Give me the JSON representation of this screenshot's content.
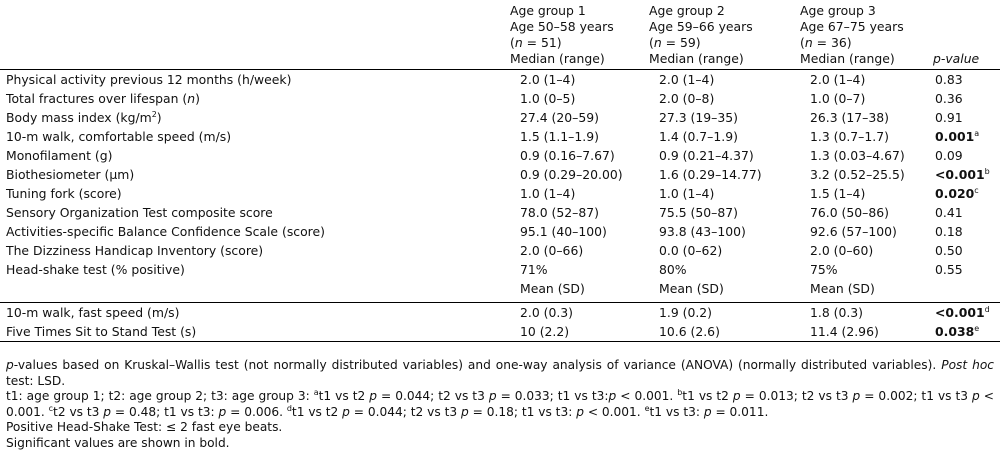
{
  "header": {
    "groups": [
      {
        "name": "Age group 1",
        "age": "Age 50–58 years",
        "n": "(n = 51)",
        "stat": "Median (range)"
      },
      {
        "name": "Age group 2",
        "age": "Age 59–66 years",
        "n": "(n = 59)",
        "stat": "Median (range)"
      },
      {
        "name": "Age group 3",
        "age": "Age 67–75 years",
        "n": "(n = 36)",
        "stat": "Median (range)"
      }
    ],
    "pvalue": "p-value"
  },
  "rows": [
    {
      "label": "Physical activity previous 12 months (h/week)",
      "g1": "2.0 (1–4)",
      "g2": "2.0 (1–4)",
      "g3": "2.0 (1–4)",
      "p": "0.83"
    },
    {
      "label": "Total fractures over lifespan (n)",
      "g1": "1.0 (0–5)",
      "g2": "2.0 (0–8)",
      "g3": "1.0 (0–7)",
      "p": "0.36"
    },
    {
      "label": "Body mass index (kg/m2)",
      "g1": "27.4 (20–59)",
      "g2": "27.3 (19–35)",
      "g3": "26.3 (17–38)",
      "p": "0.91"
    },
    {
      "label": "10-m walk, comfortable speed (m/s)",
      "g1": "1.5 (1.1–1.9)",
      "g2": "1.4 (0.7–1.9)",
      "g3": "1.3 (0.7–1.7)",
      "p": "0.001",
      "sup": "a"
    },
    {
      "label": "Monofilament (g)",
      "g1": "0.9 (0.16–7.67)",
      "g2": "0.9 (0.21–4.37)",
      "g3": "1.3 (0.03–4.67)",
      "p": "0.09"
    },
    {
      "label": "Biothesiometer (µm)",
      "g1": "0.9 (0.29–20.00)",
      "g2": "1.6 (0.29–14.77)",
      "g3": "3.2 (0.52–25.5)",
      "p": "<0.001",
      "sup": "b"
    },
    {
      "label": "Tuning fork (score)",
      "g1": "1.0 (1–4)",
      "g2": "1.0 (1–4)",
      "g3": "1.5 (1–4)",
      "p": "0.020",
      "sup": "c"
    },
    {
      "label": "Sensory Organization Test composite score",
      "g1": "78.0 (52–87)",
      "g2": "75.5 (50–87)",
      "g3": "76.0 (50–86)",
      "p": "0.41"
    },
    {
      "label": "Activities-specific Balance Confidence Scale (score)",
      "g1": "95.1 (40–100)",
      "g2": "93.8 (43–100)",
      "g3": "92.6 (57–100)",
      "p": "0.18"
    },
    {
      "label": "The Dizziness Handicap Inventory (score)",
      "g1": "2.0 (0–66)",
      "g2": "0.0 (0–62)",
      "g3": "2.0 (0–60)",
      "p": "0.50"
    },
    {
      "label": "Head-shake test (% positive)",
      "g1": "71%",
      "g2": "80%",
      "g3": "75%",
      "p": "0.55"
    }
  ],
  "mean_header": {
    "g1": "Mean (SD)",
    "g2": "Mean (SD)",
    "g3": "Mean (SD)"
  },
  "mean_rows": [
    {
      "label": "10-m walk, fast speed (m/s)",
      "g1": "2.0 (0.3)",
      "g2": "1.9 (0.2)",
      "g3": "1.8 (0.3)",
      "p": "<0.001",
      "sup": "d"
    },
    {
      "label": "Five Times Sit to Stand Test (s)",
      "g1": "10 (2.2)",
      "g2": "10.6 (2.6)",
      "g3": "11.4 (2.96)",
      "p": "0.038",
      "sup": "e"
    }
  ],
  "notes": {
    "n1a": "p",
    "n1b": "-values based on Kruskal–Wallis test (not normally distributed variables) and one-way analysis of variance (ANOVA) (normally distributed variables). ",
    "n1c": "Post hoc",
    "n1d": " test: LSD.",
    "line2": "t1: age group 1; t2: age group 2; t3: age group 3: at1 vs t2 p = 0.044; t2 vs t3 p = 0.033; t1 vs t3:p < 0.001. bt1 vs t2 p = 0.013; t2 vs t3 p = 0.002; t1 vs t3 p < 0.001. ct2 vs t3 p = 0.48; t1 vs t3: p = 0.006. dt1 vs t2 p = 0.044; t2 vs t3 p = 0.18; t1 vs t3: p < 0.001. et1 vs t3: p = 0.011.",
    "line3": "Positive Head-Shake Test: ≤ 2 fast eye beats.",
    "line4": "Significant values are shown in bold."
  }
}
